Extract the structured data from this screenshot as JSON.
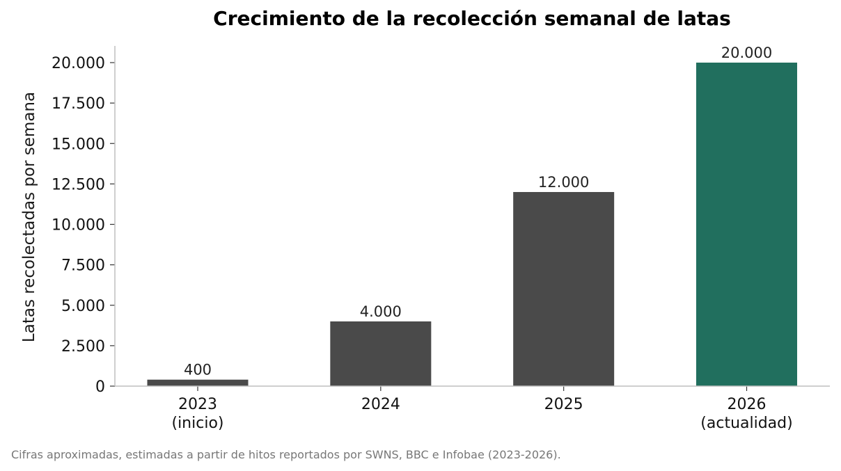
{
  "chart_data": {
    "type": "bar",
    "title": "Crecimiento de la recolección semanal de latas",
    "xlabel": "",
    "ylabel": "Latas recolectadas por semana",
    "categories": [
      [
        "2023",
        "(inicio)"
      ],
      [
        "2024"
      ],
      [
        "2025"
      ],
      [
        "2026",
        "(actualidad)"
      ]
    ],
    "values": [
      400,
      4000,
      12000,
      20000
    ],
    "data_labels": [
      "400",
      "4.000",
      "12.000",
      "20.000"
    ],
    "bar_colors": [
      "#4a4a4a",
      "#4a4a4a",
      "#4a4a4a",
      "#216f5e"
    ],
    "ylim": [
      0,
      21000
    ],
    "yticks": [
      0,
      2500,
      5000,
      7500,
      10000,
      12500,
      15000,
      17500,
      20000
    ],
    "ytick_labels": [
      "0",
      "2.500",
      "5.000",
      "7.500",
      "10.000",
      "12.500",
      "15.000",
      "17.500",
      "20.000"
    ],
    "grid": false,
    "legend": "none",
    "axis_color": "#bfbfbf",
    "source_note": "Cifras aproximadas, estimadas a partir de hitos reportados por SWNS, BBC e Infobae (2023-2026)."
  }
}
